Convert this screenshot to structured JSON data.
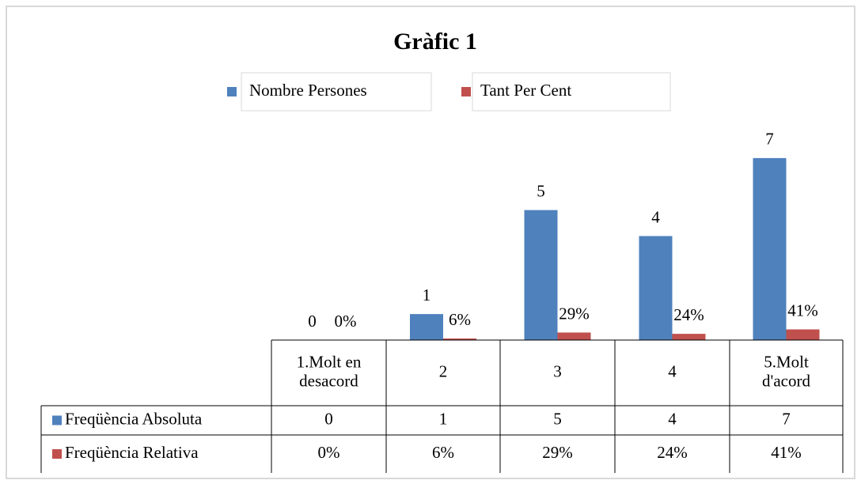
{
  "chart_data": {
    "type": "bar",
    "title": "Gràfic 1",
    "categories": [
      "1.Molt en desacord",
      "2",
      "3",
      "4",
      "5.Molt d'acord"
    ],
    "series": [
      {
        "name": "Nombre Persones",
        "table_name": "Freqüència Absoluta",
        "color": "#4f81bd",
        "values": [
          0,
          1,
          5,
          4,
          7
        ]
      },
      {
        "name": "Tant Per Cent",
        "table_name": "Freqüència Relativa",
        "color": "#c0504d",
        "values": [
          0,
          0.06,
          0.29,
          0.24,
          0.41
        ],
        "value_labels": [
          "0%",
          "6%",
          "29%",
          "24%",
          "41%"
        ]
      }
    ],
    "ylim": [
      0,
      8
    ],
    "legend": "top"
  }
}
